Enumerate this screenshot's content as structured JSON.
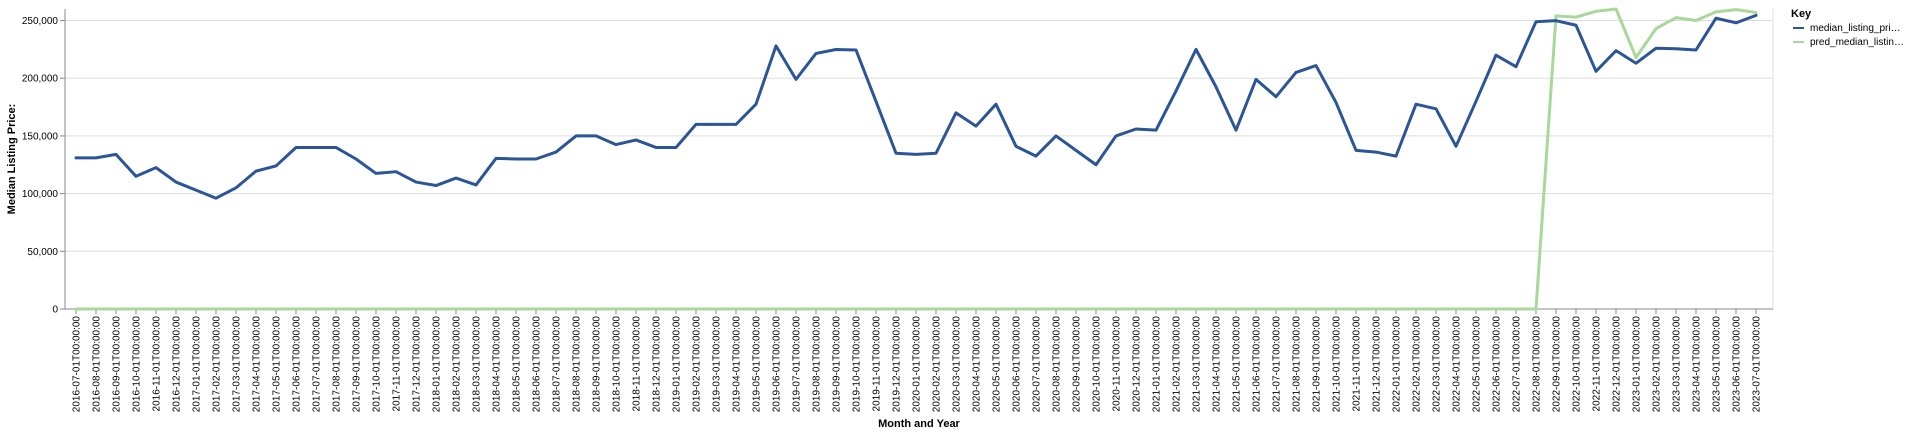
{
  "chart_data": {
    "type": "line",
    "xlabel": "Month and Year",
    "ylabel": "Median Listing Price:",
    "ylim": [
      0,
      260000
    ],
    "yticks": [
      0,
      50000,
      100000,
      150000,
      200000,
      250000
    ],
    "ytick_labels": [
      "0",
      "50,000",
      "100,000",
      "150,000",
      "200,000",
      "250,000"
    ],
    "grid": true,
    "legend": {
      "title": "Key",
      "position": "top-right"
    },
    "x": [
      "2016-07-01T00:00:00",
      "2016-08-01T00:00:00",
      "2016-09-01T00:00:00",
      "2016-10-01T00:00:00",
      "2016-11-01T00:00:00",
      "2016-12-01T00:00:00",
      "2017-01-01T00:00:00",
      "2017-02-01T00:00:00",
      "2017-03-01T00:00:00",
      "2017-04-01T00:00:00",
      "2017-05-01T00:00:00",
      "2017-06-01T00:00:00",
      "2017-07-01T00:00:00",
      "2017-08-01T00:00:00",
      "2017-09-01T00:00:00",
      "2017-10-01T00:00:00",
      "2017-11-01T00:00:00",
      "2017-12-01T00:00:00",
      "2018-01-01T00:00:00",
      "2018-02-01T00:00:00",
      "2018-03-01T00:00:00",
      "2018-04-01T00:00:00",
      "2018-05-01T00:00:00",
      "2018-06-01T00:00:00",
      "2018-07-01T00:00:00",
      "2018-08-01T00:00:00",
      "2018-09-01T00:00:00",
      "2018-10-01T00:00:00",
      "2018-11-01T00:00:00",
      "2018-12-01T00:00:00",
      "2019-01-01T00:00:00",
      "2019-02-01T00:00:00",
      "2019-03-01T00:00:00",
      "2019-04-01T00:00:00",
      "2019-05-01T00:00:00",
      "2019-06-01T00:00:00",
      "2019-07-01T00:00:00",
      "2019-08-01T00:00:00",
      "2019-09-01T00:00:00",
      "2019-10-01T00:00:00",
      "2019-11-01T00:00:00",
      "2019-12-01T00:00:00",
      "2020-01-01T00:00:00",
      "2020-02-01T00:00:00",
      "2020-03-01T00:00:00",
      "2020-04-01T00:00:00",
      "2020-05-01T00:00:00",
      "2020-06-01T00:00:00",
      "2020-07-01T00:00:00",
      "2020-08-01T00:00:00",
      "2020-09-01T00:00:00",
      "2020-10-01T00:00:00",
      "2020-11-01T00:00:00",
      "2020-12-01T00:00:00",
      "2021-01-01T00:00:00",
      "2021-02-01T00:00:00",
      "2021-03-01T00:00:00",
      "2021-04-01T00:00:00",
      "2021-05-01T00:00:00",
      "2021-06-01T00:00:00",
      "2021-07-01T00:00:00",
      "2021-08-01T00:00:00",
      "2021-09-01T00:00:00",
      "2021-10-01T00:00:00",
      "2021-11-01T00:00:00",
      "2021-12-01T00:00:00",
      "2022-01-01T00:00:00",
      "2022-02-01T00:00:00",
      "2022-03-01T00:00:00",
      "2022-04-01T00:00:00",
      "2022-05-01T00:00:00",
      "2022-06-01T00:00:00",
      "2022-07-01T00:00:00",
      "2022-08-01T00:00:00",
      "2022-09-01T00:00:00",
      "2022-10-01T00:00:00",
      "2022-11-01T00:00:00",
      "2022-12-01T00:00:00",
      "2023-01-01T00:00:00",
      "2023-02-01T00:00:00",
      "2023-03-01T00:00:00",
      "2023-04-01T00:00:00",
      "2023-05-01T00:00:00",
      "2023-06-01T00:00:00",
      "2023-07-01T00:00:00"
    ],
    "series": [
      {
        "name": "median_listing_pri…",
        "color": "#2b5597",
        "values": [
          131000,
          131000,
          134000,
          115000,
          122500,
          110000,
          103000,
          96000,
          105000,
          119500,
          124000,
          140000,
          140000,
          140000,
          130000,
          117500,
          119000,
          110000,
          107000,
          113500,
          107500,
          130500,
          130000,
          130000,
          136000,
          150000,
          150000,
          142500,
          146500,
          140000,
          140000,
          160000,
          160000,
          160000,
          177500,
          228000,
          199000,
          221500,
          224900,
          224500,
          179900,
          135000,
          134000,
          135000,
          170000,
          158500,
          177500,
          141000,
          132500,
          150000,
          137500,
          125000,
          150000,
          156000,
          155000,
          189000,
          225000,
          192500,
          155000,
          199000,
          184000,
          205000,
          211000,
          179000,
          137500,
          136000,
          132500,
          177500,
          173500,
          141000,
          180000,
          220000,
          210000,
          249000,
          249900,
          245900,
          206000,
          223900,
          213000,
          226000,
          225500,
          224500,
          252000,
          248000,
          254500
        ]
      },
      {
        "name": "pred_median_listin…",
        "color": "#a8d89a",
        "values": [
          0,
          0,
          0,
          0,
          0,
          0,
          0,
          0,
          0,
          0,
          0,
          0,
          0,
          0,
          0,
          0,
          0,
          0,
          0,
          0,
          0,
          0,
          0,
          0,
          0,
          0,
          0,
          0,
          0,
          0,
          0,
          0,
          0,
          0,
          0,
          0,
          0,
          0,
          0,
          0,
          0,
          0,
          0,
          0,
          0,
          0,
          0,
          0,
          0,
          0,
          0,
          0,
          0,
          0,
          0,
          0,
          0,
          0,
          0,
          0,
          0,
          0,
          0,
          0,
          0,
          0,
          0,
          0,
          0,
          0,
          0,
          0,
          0,
          0,
          254000,
          253000,
          258000,
          260000,
          218000,
          243000,
          252500,
          250000,
          257500,
          259500,
          257000
        ]
      }
    ]
  }
}
